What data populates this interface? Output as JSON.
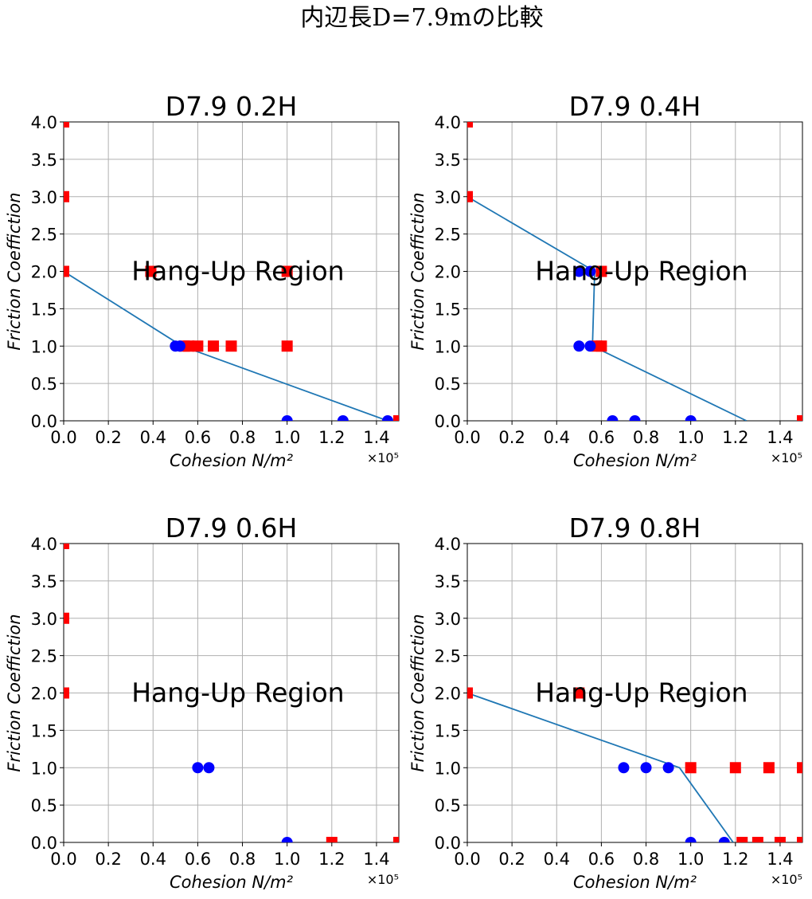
{
  "figure": {
    "suptitle": "内辺長D=7.9mの比較"
  },
  "chart_data": [
    {
      "type": "scatter",
      "title": "D7.9 0.2H",
      "xlabel": "Cohesion N/m²",
      "ylabel": "Friction Coeffiction",
      "xlim": [
        0,
        150000
      ],
      "ylim": [
        0,
        4.0
      ],
      "x_offset_label": "×10⁵",
      "xticks": [
        "0.0",
        "0.2",
        "0.4",
        "0.6",
        "0.8",
        "1.0",
        "1.2",
        "1.4"
      ],
      "yticks": [
        "0.0",
        "0.5",
        "1.0",
        "1.5",
        "2.0",
        "2.5",
        "3.0",
        "3.5",
        "4.0"
      ],
      "grid": true,
      "annotation": "Hang-Up Region",
      "series": [
        {
          "marker": "circle",
          "color": "#0000ff",
          "points": [
            [
              50000,
              1.0
            ],
            [
              52000,
              1.0
            ],
            [
              100000,
              0.0
            ],
            [
              125000,
              0.0
            ],
            [
              145000,
              0.0
            ]
          ]
        },
        {
          "marker": "square",
          "color": "#ff0000",
          "points": [
            [
              0,
              4.0
            ],
            [
              0,
              3.0
            ],
            [
              0,
              2.0
            ],
            [
              39000,
              2.0
            ],
            [
              100000,
              2.0
            ],
            [
              54000,
              1.0
            ],
            [
              56000,
              1.0
            ],
            [
              60000,
              1.0
            ],
            [
              67000,
              1.0
            ],
            [
              75000,
              1.0
            ],
            [
              100000,
              1.0
            ],
            [
              150000,
              0.0
            ]
          ]
        },
        {
          "line": true,
          "color": "#1f77b4",
          "points": [
            [
              0,
              2.0
            ],
            [
              53000,
              1.0
            ],
            [
              145000,
              0.0
            ]
          ]
        }
      ]
    },
    {
      "type": "scatter",
      "title": "D7.9 0.4H",
      "xlabel": "Cohesion N/m²",
      "ylabel": "Friction Coeffiction",
      "xlim": [
        0,
        150000
      ],
      "ylim": [
        0,
        4.0
      ],
      "x_offset_label": "×10⁵",
      "xticks": [
        "0.0",
        "0.2",
        "0.4",
        "0.6",
        "0.8",
        "1.0",
        "1.2",
        "1.4"
      ],
      "yticks": [
        "0.0",
        "0.5",
        "1.0",
        "1.5",
        "2.0",
        "2.5",
        "3.0",
        "3.5",
        "4.0"
      ],
      "grid": true,
      "annotation": "Hang-Up Region",
      "series": [
        {
          "marker": "circle",
          "color": "#0000ff",
          "points": [
            [
              50000,
              2.0
            ],
            [
              55000,
              2.0
            ],
            [
              50000,
              1.0
            ],
            [
              55000,
              1.0
            ],
            [
              65000,
              0.0
            ],
            [
              75000,
              0.0
            ],
            [
              100000,
              0.0
            ]
          ]
        },
        {
          "marker": "square",
          "color": "#ff0000",
          "points": [
            [
              0,
              4.0
            ],
            [
              0,
              3.0
            ],
            [
              60000,
              2.0
            ],
            [
              58000,
              1.0
            ],
            [
              60000,
              1.0
            ],
            [
              150000,
              0.0
            ]
          ]
        },
        {
          "line": true,
          "color": "#1f77b4",
          "points": [
            [
              0,
              3.0
            ],
            [
              57000,
              2.0
            ],
            [
              56000,
              1.0
            ],
            [
              125000,
              0.0
            ]
          ]
        }
      ]
    },
    {
      "type": "scatter",
      "title": "D7.9 0.6H",
      "xlabel": "Cohesion N/m²",
      "ylabel": "Friction Coeffiction",
      "xlim": [
        0,
        150000
      ],
      "ylim": [
        0,
        4.0
      ],
      "x_offset_label": "×10⁵",
      "xticks": [
        "0.0",
        "0.2",
        "0.4",
        "0.6",
        "0.8",
        "1.0",
        "1.2",
        "1.4"
      ],
      "yticks": [
        "0.0",
        "0.5",
        "1.0",
        "1.5",
        "2.0",
        "2.5",
        "3.0",
        "3.5",
        "4.0"
      ],
      "grid": true,
      "annotation": "Hang-Up Region",
      "series": [
        {
          "marker": "circle",
          "color": "#0000ff",
          "points": [
            [
              60000,
              1.0
            ],
            [
              65000,
              1.0
            ],
            [
              100000,
              0.0
            ]
          ]
        },
        {
          "marker": "square",
          "color": "#ff0000",
          "points": [
            [
              0,
              4.0
            ],
            [
              0,
              3.0
            ],
            [
              0,
              2.0
            ],
            [
              120000,
              0.0
            ],
            [
              150000,
              0.0
            ]
          ]
        }
      ]
    },
    {
      "type": "scatter",
      "title": "D7.9 0.8H",
      "xlabel": "Cohesion N/m²",
      "ylabel": "Friction Coeffiction",
      "xlim": [
        0,
        150000
      ],
      "ylim": [
        0,
        4.0
      ],
      "x_offset_label": "×10⁵",
      "xticks": [
        "0.0",
        "0.2",
        "0.4",
        "0.6",
        "0.8",
        "1.0",
        "1.2",
        "1.4"
      ],
      "yticks": [
        "0.0",
        "0.5",
        "1.0",
        "1.5",
        "2.0",
        "2.5",
        "3.0",
        "3.5",
        "4.0"
      ],
      "grid": true,
      "annotation": "Hang-Up Region",
      "series": [
        {
          "marker": "circle",
          "color": "#0000ff",
          "points": [
            [
              70000,
              1.0
            ],
            [
              80000,
              1.0
            ],
            [
              90000,
              1.0
            ],
            [
              100000,
              0.0
            ],
            [
              115000,
              0.0
            ]
          ]
        },
        {
          "marker": "square",
          "color": "#ff0000",
          "points": [
            [
              0,
              2.0
            ],
            [
              50000,
              2.0
            ],
            [
              100000,
              1.0
            ],
            [
              120000,
              1.0
            ],
            [
              135000,
              1.0
            ],
            [
              150000,
              1.0
            ],
            [
              123000,
              0.0
            ],
            [
              130000,
              0.0
            ],
            [
              140000,
              0.0
            ],
            [
              150000,
              0.0
            ]
          ]
        },
        {
          "line": true,
          "color": "#1f77b4",
          "points": [
            [
              0,
              2.0
            ],
            [
              95000,
              1.0
            ],
            [
              119000,
              0.0
            ]
          ]
        }
      ]
    }
  ]
}
